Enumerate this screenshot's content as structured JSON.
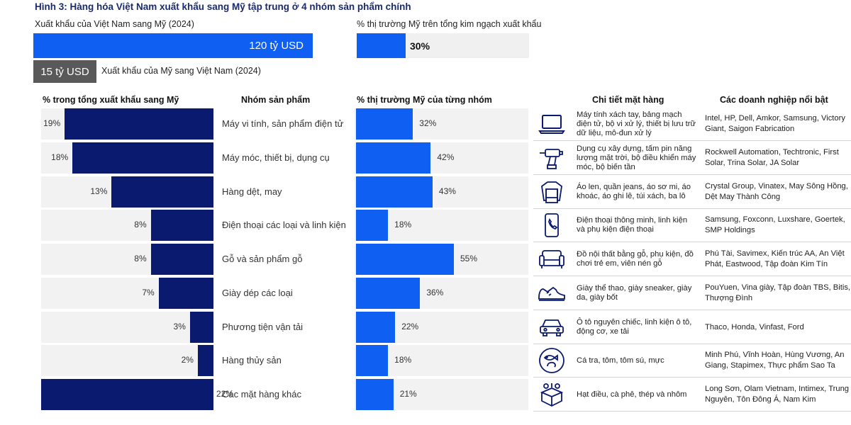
{
  "title": "Hình 3: Hàng hóa Việt Nam xuất khẩu sang Mỹ tập trung ở 4 nhóm sản phẩm chính",
  "top": {
    "vn_to_us_label": "Xuất khẩu của Việt Nam sang Mỹ (2024)",
    "vn_to_us_value": "120 tỷ USD",
    "us_share_label": "% thị trường Mỹ trên tổng kim ngạch xuất khẩu",
    "us_share_value": "30%",
    "us_share_fraction": 0.3,
    "us_to_vn_value": "15 tỷ USD",
    "us_to_vn_label": "Xuất khẩu của Mỹ sang Việt Nam (2024)"
  },
  "headers": {
    "share_total": "% trong tổng xuất khẩu sang Mỹ",
    "group": "Nhóm sản phẩm",
    "share_market": "% thị trường Mỹ của từng nhóm",
    "details": "Chi tiết mặt hàng",
    "companies": "Các doanh nghiệp nổi bật"
  },
  "colors": {
    "navy": "#0a1a6e",
    "blue": "#0f5ff2",
    "row_bg": "#f2f2f2"
  },
  "chart_data": {
    "type": "bar",
    "title": "Hình 3: Hàng hóa Việt Nam xuất khẩu sang Mỹ tập trung ở 4 nhóm sản phẩm chính",
    "categories": [
      "Máy vi tính, sản phẩm điện tử",
      "Máy móc, thiết bị, dụng cụ",
      "Hàng dệt, may",
      "Điện thoại các loại và linh kiện",
      "Gỗ và sản phẩm gỗ",
      "Giày dép các loại",
      "Phương tiện vận tải",
      "Hàng thủy sản",
      "Các mặt hàng khác"
    ],
    "series": [
      {
        "name": "% trong tổng xuất khẩu sang Mỹ",
        "values": [
          19,
          18,
          13,
          8,
          8,
          7,
          3,
          2,
          22
        ],
        "labels": [
          "19%",
          "18%",
          "13%",
          "8%",
          "8%",
          "7%",
          "3%",
          "2%",
          "22%"
        ]
      },
      {
        "name": "% thị trường Mỹ của từng nhóm",
        "values": [
          32,
          42,
          43,
          18,
          55,
          36,
          22,
          18,
          21
        ],
        "labels": [
          "32%",
          "42%",
          "43%",
          "18%",
          "55%",
          "36%",
          "22%",
          "18%",
          "21%"
        ]
      }
    ]
  },
  "rows": [
    {
      "icon": "laptop-icon",
      "detail": "Máy tính xách tay, bảng mạch điện tử, bộ vi xử lý, thiết bị lưu trữ dữ liệu, mô-đun xử lý",
      "companies": "Intel, HP, Dell, Amkor, Samsung, Victory Giant, Saigon Fabrication"
    },
    {
      "icon": "drill-icon",
      "detail": "Dụng cụ xây dựng, tấm pin năng lượng mặt trời, bộ điều khiển máy móc, bộ biến tần",
      "companies": "Rockwell Automation, Techtronic, First Solar, Trina Solar, JA Solar"
    },
    {
      "icon": "sweater-icon",
      "detail": "Áo len, quần jeans, áo sơ mi, áo khoác, áo ghi lê, túi xách, ba lô",
      "companies": "Crystal Group, Vinatex, May Sông Hồng, Dệt May Thành Công"
    },
    {
      "icon": "smartphone-icon",
      "detail": "Điện thoại thông minh, linh kiện và phụ kiện điện thoại",
      "companies": "Samsung, Foxconn, Luxshare, Goertek, SMP Holdings"
    },
    {
      "icon": "sofa-icon",
      "detail": "Đồ nội thất bằng gỗ, phụ kiện, đồ chơi trẻ em, viên nén gỗ",
      "companies": "Phú Tài, Savimex, Kiến trúc AA, An Việt Phát, Eastwood, Tập đoàn Kim Tín"
    },
    {
      "icon": "sneaker-icon",
      "detail": "Giày thể thao, giày sneaker, giày da, giày bốt",
      "companies": "PouYuen, Vina giày, Tập đoàn TBS, Bitis, Thượng Đình"
    },
    {
      "icon": "car-icon",
      "detail": "Ô tô nguyên chiếc, linh kiện ô tô, động cơ, xe tải",
      "companies": "Thaco, Honda, Vinfast, Ford"
    },
    {
      "icon": "seafood-icon",
      "detail": "Cá tra, tôm, tôm sú, mực",
      "companies": "Minh Phú, Vĩnh Hoàn, Hùng Vương, An Giang, Stapimex, Thực phẩm Sao Ta"
    },
    {
      "icon": "box-icon",
      "detail": "Hạt điều, cà phê, thép và nhôm",
      "companies": "Long Sơn, Olam Vietnam, Intimex, Trung Nguyên, Tôn Đông Á, Nam Kim"
    }
  ]
}
